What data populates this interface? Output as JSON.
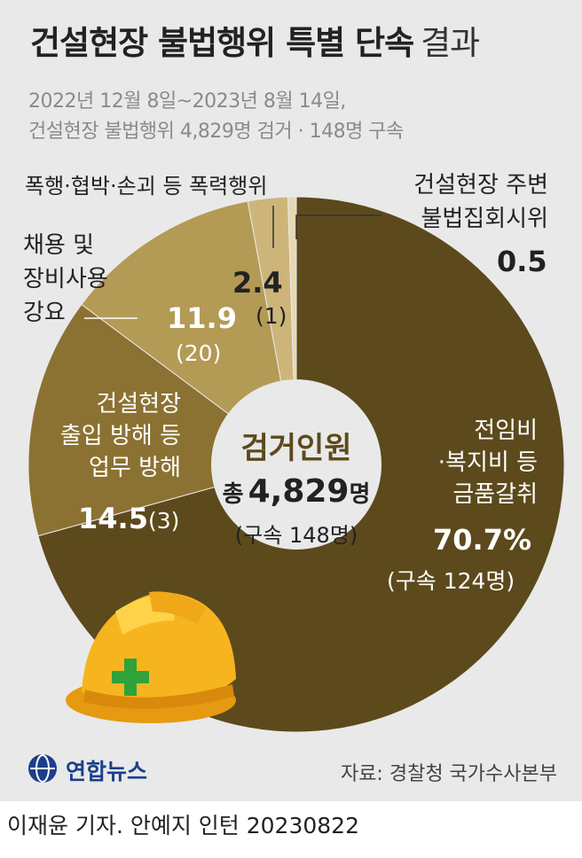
{
  "header": {
    "title": "건설현장 불법행위 특별 단속",
    "title_suffix": "결과",
    "subtitle_line1": "2022년 12월 8일~2023년 8월 14일,",
    "subtitle_line2": "건설현장 불법행위 4,829명 검거 · 148명 구속"
  },
  "center": {
    "label": "검거인원",
    "total_prefix": "총",
    "total_value": "4,829",
    "total_unit": "명",
    "arrest": "(구속 148명)"
  },
  "segments": [
    {
      "label_lines": [
        "전임비",
        "·복지비 등",
        "금품갈취"
      ],
      "value_text": "70.7%",
      "arrest_text": "(구속 124명)"
    },
    {
      "label_lines": [
        "건설현장",
        "출입 방해 등",
        "업무 방해"
      ],
      "value_text": "14.5",
      "arrest_text": "(3)"
    },
    {
      "label_lines": [
        "채용 및",
        "장비사용",
        "강요"
      ],
      "value_text": "11.9",
      "arrest_text": "(20)"
    },
    {
      "label_lines": [
        "폭행·협박·손괴 등 폭력행위"
      ],
      "value_text": "2.4",
      "arrest_text": "(1)"
    },
    {
      "label_lines": [
        "건설현장 주변",
        "불법집회시위"
      ],
      "value_text": "0.5",
      "arrest_text": ""
    }
  ],
  "chart_data": {
    "type": "pie",
    "donut": true,
    "unit": "%",
    "title": "건설현장 불법행위 특별 단속 결과",
    "categories": [
      "전임비·복지비 등 금품갈취",
      "건설현장 출입 방해 등 업무 방해",
      "채용 및 장비사용 강요",
      "폭행·협박·손괴 등 폭력행위",
      "건설현장 주변 불법집회시위"
    ],
    "values": [
      70.7,
      14.5,
      11.9,
      2.4,
      0.5
    ],
    "arrests": [
      124,
      3,
      20,
      1,
      null
    ],
    "colors": [
      "#5c4a1c",
      "#8b7232",
      "#b39a55",
      "#cdb57a",
      "#e6d8b3"
    ]
  },
  "footer": {
    "logo_text": "연합뉴스",
    "source": "자료: 경찰청 국가수사본부",
    "credit": "이재윤 기자. 안예지 인턴  20230822"
  }
}
